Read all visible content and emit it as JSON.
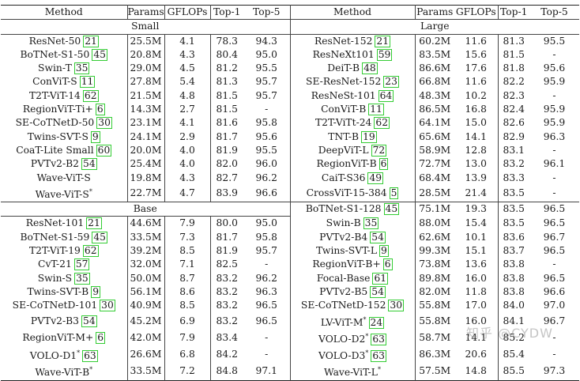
{
  "table": {
    "headers": {
      "left": [
        "Method",
        "Params",
        "GFLOPs",
        "Top-1",
        "Top-5"
      ],
      "right": [
        "Method",
        "Params",
        "GFLOPs",
        "Top-1",
        "Top-5"
      ]
    },
    "sections": {
      "small": "Small",
      "large": "Large",
      "base": "Base"
    },
    "small_rows": [
      {
        "method": "ResNet-50",
        "ref": "21",
        "params": "25.5M",
        "gflops": "4.1",
        "top1": "78.3",
        "top5": "94.3"
      },
      {
        "method": "BoTNet-S1-50",
        "ref": "45",
        "params": "20.8M",
        "gflops": "4.3",
        "top1": "80.4",
        "top5": "95.0"
      },
      {
        "method": "Swin-T",
        "ref": "35",
        "params": "29.0M",
        "gflops": "4.5",
        "top1": "81.2",
        "top5": "95.5"
      },
      {
        "method": "ConViT-S",
        "ref": "11",
        "params": "27.8M",
        "gflops": "5.4",
        "top1": "81.3",
        "top5": "95.7"
      },
      {
        "method": "T2T-ViT-14",
        "ref": "62",
        "params": "21.5M",
        "gflops": "4.8",
        "top1": "81.5",
        "top5": "95.7"
      },
      {
        "method": "RegionViT-Ti+",
        "ref": "6",
        "params": "14.3M",
        "gflops": "2.7",
        "top1": "81.5",
        "top5": "-"
      },
      {
        "method": "SE-CoTNetD-50",
        "ref": "30",
        "params": "23.1M",
        "gflops": "4.1",
        "top1": "81.6",
        "top5": "95.8"
      },
      {
        "method": "Twins-SVT-S",
        "ref": "9",
        "params": "24.1M",
        "gflops": "2.9",
        "top1": "81.7",
        "top5": "95.6"
      },
      {
        "method": "CoaT-Lite Small",
        "ref": "60",
        "params": "20.0M",
        "gflops": "4.0",
        "top1": "81.9",
        "top5": "95.5"
      },
      {
        "method": "PVTv2-B2",
        "ref": "54",
        "params": "25.4M",
        "gflops": "4.0",
        "top1": "82.0",
        "top5": "96.0"
      },
      {
        "method": "Wave-ViT-S",
        "ref": "",
        "params": "19.8M",
        "gflops": "4.3",
        "top1": "82.7",
        "top5": "96.2"
      },
      {
        "method": "Wave-ViT-S*",
        "ref": "",
        "params": "22.7M",
        "gflops": "4.7",
        "top1": "83.9",
        "top5": "96.6",
        "bold": true
      }
    ],
    "base_rows": [
      {
        "method": "ResNet-101",
        "ref": "21",
        "params": "44.6M",
        "gflops": "7.9",
        "top1": "80.0",
        "top5": "95.0"
      },
      {
        "method": "BoTNet-S1-59",
        "ref": "45",
        "params": "33.5M",
        "gflops": "7.3",
        "top1": "81.7",
        "top5": "95.8"
      },
      {
        "method": "T2T-ViT-19",
        "ref": "62",
        "params": "39.2M",
        "gflops": "8.5",
        "top1": "81.9",
        "top5": "95.7"
      },
      {
        "method": "CvT-21",
        "ref": "57",
        "params": "32.0M",
        "gflops": "7.1",
        "top1": "82.5",
        "top5": "-"
      },
      {
        "method": "Swin-S",
        "ref": "35",
        "params": "50.0M",
        "gflops": "8.7",
        "top1": "83.2",
        "top5": "96.2"
      },
      {
        "method": "Twins-SVT-B",
        "ref": "9",
        "params": "56.1M",
        "gflops": "8.6",
        "top1": "83.2",
        "top5": "96.3"
      },
      {
        "method": "SE-CoTNetD-101",
        "ref": "30",
        "params": "40.9M",
        "gflops": "8.5",
        "top1": "83.2",
        "top5": "96.5"
      },
      {
        "method": "PVTv2-B3",
        "ref": "54",
        "params": "45.2M",
        "gflops": "6.9",
        "top1": "83.2",
        "top5": "96.5"
      },
      {
        "method": "RegionViT-M+",
        "ref": "6",
        "params": "42.0M",
        "gflops": "7.9",
        "top1": "83.4",
        "top5": "-"
      },
      {
        "method": "VOLO-D1*",
        "ref": "63",
        "params": "26.6M",
        "gflops": "6.8",
        "top1": "84.2",
        "top5": "-"
      },
      {
        "method": "Wave-ViT-B*",
        "ref": "",
        "params": "33.5M",
        "gflops": "7.2",
        "top1": "84.8",
        "top5": "97.1",
        "bold": true
      }
    ],
    "large_rows": [
      {
        "method": "ResNet-152",
        "ref": "21",
        "params": "60.2M",
        "gflops": "11.6",
        "top1": "81.3",
        "top5": "95.5"
      },
      {
        "method": "ResNeXt101",
        "ref": "59",
        "params": "83.5M",
        "gflops": "15.6",
        "top1": "81.5",
        "top5": "-"
      },
      {
        "method": "DeiT-B",
        "ref": "48",
        "params": "86.6M",
        "gflops": "17.6",
        "top1": "81.8",
        "top5": "95.6"
      },
      {
        "method": "SE-ResNet-152",
        "ref": "23",
        "params": "66.8M",
        "gflops": "11.6",
        "top1": "82.2",
        "top5": "95.9"
      },
      {
        "method": "ResNeSt-101",
        "ref": "64",
        "params": "48.3M",
        "gflops": "10.2",
        "top1": "82.3",
        "top5": "-"
      },
      {
        "method": "ConViT-B",
        "ref": "11",
        "params": "86.5M",
        "gflops": "16.8",
        "top1": "82.4",
        "top5": "95.9"
      },
      {
        "method": "T2T-ViTt-24",
        "ref": "62",
        "params": "64.1M",
        "gflops": "15.0",
        "top1": "82.6",
        "top5": "95.9"
      },
      {
        "method": "TNT-B",
        "ref": "19",
        "params": "65.6M",
        "gflops": "14.1",
        "top1": "82.9",
        "top5": "96.3"
      },
      {
        "method": "DeepViT-L",
        "ref": "72",
        "params": "58.9M",
        "gflops": "12.8",
        "top1": "83.1",
        "top5": "-"
      },
      {
        "method": "RegionViT-B",
        "ref": "6",
        "params": "72.7M",
        "gflops": "13.0",
        "top1": "83.2",
        "top5": "96.1"
      },
      {
        "method": "CaiT-S36",
        "ref": "49",
        "params": "68.4M",
        "gflops": "13.9",
        "top1": "83.3",
        "top5": "-"
      },
      {
        "method": "CrossViT-15-384",
        "ref": "5",
        "params": "28.5M",
        "gflops": "21.4",
        "top1": "83.5",
        "top5": "-"
      },
      {
        "method": "BoTNet-S1-128",
        "ref": "45",
        "params": "75.1M",
        "gflops": "19.3",
        "top1": "83.5",
        "top5": "96.5"
      },
      {
        "method": "Swin-B",
        "ref": "35",
        "params": "88.0M",
        "gflops": "15.4",
        "top1": "83.5",
        "top5": "96.5"
      },
      {
        "method": "PVTv2-B4",
        "ref": "54",
        "params": "62.6M",
        "gflops": "10.1",
        "top1": "83.6",
        "top5": "96.7"
      },
      {
        "method": "Twins-SVT-L",
        "ref": "9",
        "params": "99.3M",
        "gflops": "15.1",
        "top1": "83.7",
        "top5": "96.5"
      },
      {
        "method": "RegionViT-B+",
        "ref": "6",
        "params": "73.8M",
        "gflops": "13.6",
        "top1": "83.8",
        "top5": "-"
      },
      {
        "method": "Focal-Base",
        "ref": "61",
        "params": "89.8M",
        "gflops": "16.0",
        "top1": "83.8",
        "top5": "96.5"
      },
      {
        "method": "PVTv2-B5",
        "ref": "54",
        "params": "82.0M",
        "gflops": "11.8",
        "top1": "83.8",
        "top5": "96.6"
      },
      {
        "method": "SE-CoTNetD-152",
        "ref": "30",
        "params": "55.8M",
        "gflops": "17.0",
        "top1": "84.0",
        "top5": "97.0"
      },
      {
        "method": "LV-ViT-M*",
        "ref": "24",
        "params": "55.8M",
        "gflops": "16.0",
        "top1": "84.1",
        "top5": "96.7"
      },
      {
        "method": "VOLO-D2*",
        "ref": "63",
        "params": "58.7M",
        "gflops": "14.1",
        "top1": "85.2",
        "top5": "-"
      },
      {
        "method": "VOLO-D3*",
        "ref": "63",
        "params": "86.3M",
        "gflops": "20.6",
        "top1": "85.4",
        "top5": "-"
      },
      {
        "method": "Wave-ViT-L*",
        "ref": "",
        "params": "57.5M",
        "gflops": "14.8",
        "top1": "85.5",
        "top5": "97.3",
        "bold": true
      }
    ]
  },
  "watermark": "知乎 @CYDW",
  "colors": {
    "ref_box": "#33cc33",
    "rule": "#222222"
  }
}
